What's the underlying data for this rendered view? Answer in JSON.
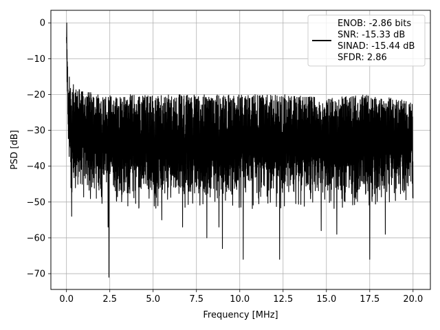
{
  "chart_data": {
    "type": "line",
    "xlabel": "Frequency [MHz]",
    "ylabel": "PSD [dB]",
    "xlim": [
      -0.9,
      21.0
    ],
    "ylim": [
      -74.4,
      3.5
    ],
    "xticks": [
      0.0,
      2.5,
      5.0,
      7.5,
      10.0,
      12.5,
      15.0,
      17.5,
      20.0
    ],
    "xtick_labels": [
      "0.0",
      "2.5",
      "5.0",
      "7.5",
      "10.0",
      "12.5",
      "15.0",
      "17.5",
      "20.0"
    ],
    "yticks": [
      0,
      -10,
      -20,
      -30,
      -40,
      -50,
      -60,
      -70
    ],
    "ytick_labels": [
      "0",
      "−10",
      "−20",
      "−30",
      "−40",
      "−50",
      "−60",
      "−70"
    ],
    "grid": true,
    "legend_position": "top-right",
    "line_color": "#000000",
    "series": [
      {
        "name": "ENOB: -2.86 bits\nSNR: -15.33 dB\nSINAD: -15.44 dB\nSFDR: 2.86",
        "description": "dense noisy PSD trace",
        "envelope": {
          "x": [
            0.0,
            0.05,
            0.1,
            0.25,
            0.5,
            1.0,
            2.0,
            3.5,
            5.0,
            7.5,
            10.0,
            12.5,
            15.0,
            17.5,
            20.0
          ],
          "upper": [
            0,
            -10,
            -14,
            -16,
            -18,
            -19,
            -20,
            -20,
            -20,
            -20,
            -20,
            -20,
            -21,
            -20,
            -22
          ],
          "lower": [
            -5,
            -20,
            -42,
            -45,
            -45,
            -46,
            -47,
            -48,
            -48,
            -48,
            -48,
            -48,
            -48,
            -48,
            -45
          ]
        },
        "dips": [
          {
            "x": 0.3,
            "y": -54
          },
          {
            "x": 2.45,
            "y": -71
          },
          {
            "x": 2.4,
            "y": -57
          },
          {
            "x": 5.5,
            "y": -55
          },
          {
            "x": 6.7,
            "y": -57
          },
          {
            "x": 8.1,
            "y": -60
          },
          {
            "x": 8.8,
            "y": -57
          },
          {
            "x": 9.0,
            "y": -63
          },
          {
            "x": 10.2,
            "y": -66
          },
          {
            "x": 12.3,
            "y": -66
          },
          {
            "x": 14.7,
            "y": -58
          },
          {
            "x": 15.6,
            "y": -59
          },
          {
            "x": 17.5,
            "y": -66
          },
          {
            "x": 18.4,
            "y": -59
          }
        ]
      }
    ],
    "legend": {
      "lines": [
        "ENOB: -2.86 bits",
        "SNR: -15.33 dB",
        "SINAD: -15.44 dB",
        "SFDR: 2.86"
      ]
    }
  }
}
